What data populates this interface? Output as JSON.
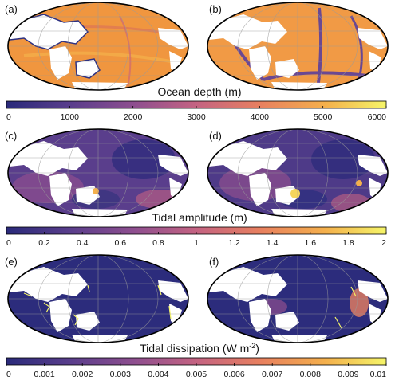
{
  "figure": {
    "panel_labels": [
      "(a)",
      "(b)",
      "(c)",
      "(d)",
      "(e)",
      "(f)"
    ],
    "rows": [
      {
        "title": "Ocean depth (m)",
        "colorbar": {
          "min": 0,
          "max": 6000,
          "ticks": [
            "0",
            "1000",
            "2000",
            "3000",
            "4000",
            "5000",
            "6000"
          ]
        }
      },
      {
        "title": "Tidal amplitude (m)",
        "colorbar": {
          "min": 0,
          "max": 2,
          "ticks": [
            "0",
            "0.2",
            "0.4",
            "0.6",
            "0.8",
            "1",
            "1.2",
            "1.4",
            "1.6",
            "1.8",
            "2"
          ]
        }
      },
      {
        "title": "Tidal dissipation (W m",
        "title_sup": "-2",
        "title_close": ")",
        "colorbar": {
          "min": 0,
          "max": 0.01,
          "ticks": [
            "0",
            "0.001",
            "0.002",
            "0.003",
            "0.004",
            "0.005",
            "0.006",
            "0.007",
            "0.008",
            "0.009",
            "0.01"
          ]
        }
      }
    ],
    "colormap": [
      "#2a2a7a",
      "#5a3e8c",
      "#8f4f8f",
      "#c46382",
      "#e8805f",
      "#f4b04c",
      "#f5f569"
    ],
    "colors": {
      "ocean_depth_fill": "#f19a45",
      "ocean_low": "#2e3283",
      "land": "#ffffff",
      "frame": "#000000"
    }
  }
}
